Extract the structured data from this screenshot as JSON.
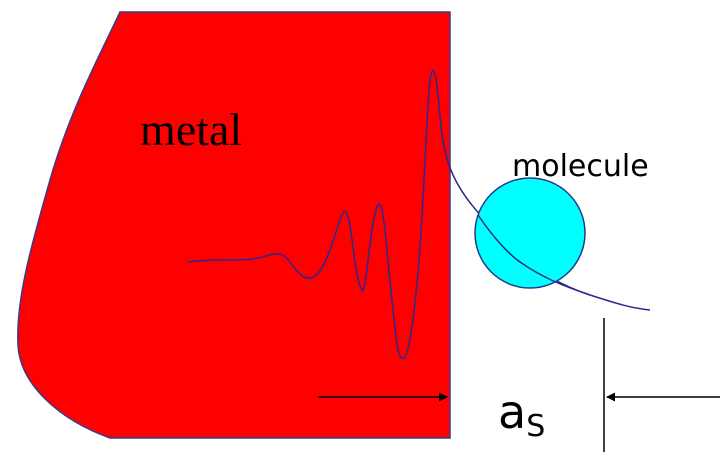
{
  "labels": {
    "metal": "metal",
    "molecule": "molecule",
    "distance_symbol": "a",
    "distance_subscript": "S"
  },
  "colors": {
    "metal_fill": "#ff0000",
    "metal_outline": "#3a3a8c",
    "molecule_fill": "#00ffff",
    "molecule_outline": "#1f3c88",
    "wavefunction": "#2a2a8c",
    "arrows": "#000000",
    "text": "#000000"
  }
}
